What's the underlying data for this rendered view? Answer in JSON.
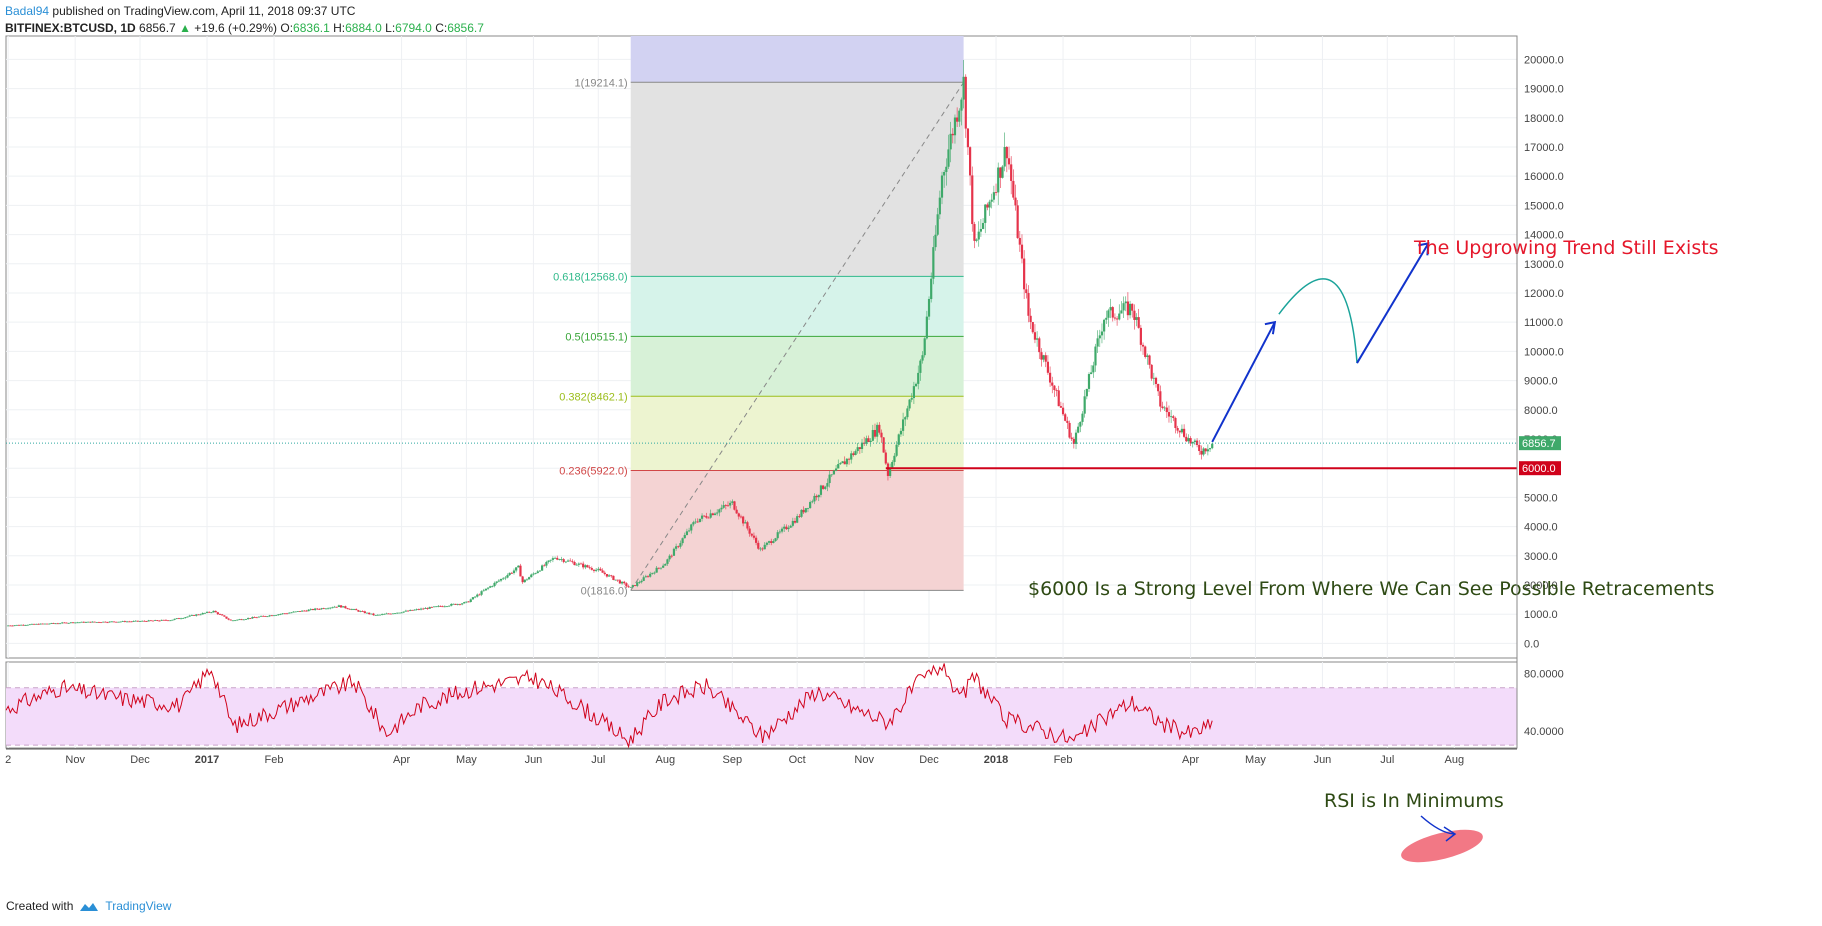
{
  "header": {
    "author": "Badal94",
    "published": "published on TradingView.com, April 11, 2018 09:37 UTC",
    "symbol": "BITFINEX:BTCUSD, 1D",
    "last": "6856.7",
    "change": "+19.6 (+0.29%)",
    "open_label": "O:",
    "open": "6836.1",
    "high_label": "H:",
    "high": "6884.0",
    "low_label": "L:",
    "low": "6794.0",
    "close_label": "C:",
    "close": "6856.7"
  },
  "footer": {
    "created_with": "Created with",
    "brand": "TradingView"
  },
  "annotations": {
    "trend": "The Upgrowing Trend Still Exists",
    "level": "$6000 Is a Strong Level From Where We Can See Possible Retracements",
    "rsi": "RSI is In Minimums"
  },
  "colors": {
    "bull": "#3fa96a",
    "bear": "#e5334a",
    "fib_top": "#d2d2f2",
    "fib_upper": "#e2e2e2",
    "fib_618": "#d6f3ea",
    "fib_5": "#d7f1d7",
    "fib_382": "#edf4d0",
    "fib_236": "#f4d3d3",
    "level_line": "#d0021b",
    "rsi_line": "#d0021b",
    "rsi_band": "#f3dcfa",
    "arrow": "#1133cc",
    "arc": "#1aa39a"
  },
  "chart_data": [
    {
      "type": "candlestick",
      "title": "BITFINEX:BTCUSD, 1D",
      "y_axis_labels": [
        "20000.0",
        "19000.0",
        "18000.0",
        "17000.0",
        "16000.0",
        "15000.0",
        "14000.0",
        "13000.0",
        "12000.0",
        "11000.0",
        "10000.0",
        "9000.0",
        "8000.0",
        "7000.0",
        "6000.0",
        "5000.0",
        "4000.0",
        "3000.0",
        "2000.0",
        "1000.0",
        "0.0"
      ],
      "ylim": [
        -500,
        20800
      ],
      "x_axis_labels": [
        "2",
        "Nov",
        "Dec",
        "2017",
        "Feb",
        "Apr",
        "May",
        "Jun",
        "Jul",
        "Aug",
        "Sep",
        "Oct",
        "Nov",
        "Dec",
        "2018",
        "Feb",
        "Apr",
        "May",
        "Jun",
        "Jul",
        "Aug"
      ],
      "x_axis_dates": [
        "2016-10-01",
        "2016-11-01",
        "2016-12-01",
        "2017-01-01",
        "2017-02-01",
        "2017-04-01",
        "2017-05-01",
        "2017-06-01",
        "2017-07-01",
        "2017-08-01",
        "2017-09-01",
        "2017-10-01",
        "2017-11-01",
        "2017-12-01",
        "2018-01-01",
        "2018-02-01",
        "2018-04-01",
        "2018-05-01",
        "2018-06-01",
        "2018-07-01",
        "2018-08-01"
      ],
      "xlim": [
        "2016-09-30",
        "2018-08-30"
      ],
      "price_path": [
        {
          "date": "2016-09-30",
          "close": 610
        },
        {
          "date": "2016-11-01",
          "close": 720
        },
        {
          "date": "2016-12-01",
          "close": 760
        },
        {
          "date": "2016-12-15",
          "close": 800
        },
        {
          "date": "2017-01-04",
          "close": 1100
        },
        {
          "date": "2017-01-12",
          "close": 780
        },
        {
          "date": "2017-02-01",
          "close": 980
        },
        {
          "date": "2017-03-03",
          "close": 1280
        },
        {
          "date": "2017-03-20",
          "close": 960
        },
        {
          "date": "2017-04-01",
          "close": 1080
        },
        {
          "date": "2017-05-01",
          "close": 1400
        },
        {
          "date": "2017-05-25",
          "close": 2600
        },
        {
          "date": "2017-05-27",
          "close": 2100
        },
        {
          "date": "2017-06-11",
          "close": 2950
        },
        {
          "date": "2017-07-01",
          "close": 2500
        },
        {
          "date": "2017-07-16",
          "close": 1900
        },
        {
          "date": "2017-08-01",
          "close": 2750
        },
        {
          "date": "2017-08-15",
          "close": 4200
        },
        {
          "date": "2017-09-01",
          "close": 4800
        },
        {
          "date": "2017-09-14",
          "close": 3200
        },
        {
          "date": "2017-10-01",
          "close": 4300
        },
        {
          "date": "2017-10-20",
          "close": 6000
        },
        {
          "date": "2017-11-08",
          "close": 7400
        },
        {
          "date": "2017-11-12",
          "close": 5800
        },
        {
          "date": "2017-11-28",
          "close": 9800
        },
        {
          "date": "2017-12-07",
          "close": 16000
        },
        {
          "date": "2017-12-17",
          "close": 19200
        },
        {
          "date": "2017-12-22",
          "close": 13500
        },
        {
          "date": "2018-01-06",
          "close": 17000
        },
        {
          "date": "2018-01-16",
          "close": 11200
        },
        {
          "date": "2018-02-06",
          "close": 6800
        },
        {
          "date": "2018-02-20",
          "close": 11200
        },
        {
          "date": "2018-03-05",
          "close": 11500
        },
        {
          "date": "2018-03-18",
          "close": 8200
        },
        {
          "date": "2018-04-01",
          "close": 6900
        },
        {
          "date": "2018-04-06",
          "close": 6600
        },
        {
          "date": "2018-04-11",
          "close": 6856.7
        }
      ],
      "last_price": 6856.7,
      "horizontal_level": 6000,
      "fibonacci": {
        "start_date": "2017-07-16",
        "end_date": "2017-12-17",
        "levels": [
          {
            "label": "1(19214.1)",
            "ratio": 1,
            "value": 19214.1
          },
          {
            "label": "0.618(12568.0)",
            "ratio": 0.618,
            "value": 12568.0
          },
          {
            "label": "0.5(10515.1)",
            "ratio": 0.5,
            "value": 10515.1
          },
          {
            "label": "0.382(8462.1)",
            "ratio": 0.382,
            "value": 8462.1
          },
          {
            "label": "0.236(5922.0)",
            "ratio": 0.236,
            "value": 5922.0
          },
          {
            "label": "0(1816.0)",
            "ratio": 0,
            "value": 1816.0
          }
        ]
      },
      "price_labels": {
        "last": "6856.7",
        "level": "6000.0"
      },
      "projection_path": [
        {
          "date": "2018-04-11",
          "value": 6900
        },
        {
          "date": "2018-05-10",
          "value": 11000
        },
        {
          "date": "2018-06-12",
          "value": 11950
        },
        {
          "date": "2018-06-17",
          "value": 9600
        },
        {
          "date": "2018-07-20",
          "value": 13700
        }
      ]
    },
    {
      "type": "line",
      "title": "RSI",
      "y_axis_labels": [
        "80.0000",
        "40.0000"
      ],
      "ylim": [
        28,
        88
      ],
      "bands": [
        70,
        30
      ],
      "path": [
        {
          "date": "2016-09-30",
          "value": 55
        },
        {
          "date": "2016-10-25",
          "value": 70
        },
        {
          "date": "2016-11-25",
          "value": 62
        },
        {
          "date": "2016-12-20",
          "value": 58
        },
        {
          "date": "2017-01-03",
          "value": 84
        },
        {
          "date": "2017-01-13",
          "value": 43
        },
        {
          "date": "2017-02-15",
          "value": 62
        },
        {
          "date": "2017-03-10",
          "value": 74
        },
        {
          "date": "2017-03-25",
          "value": 38
        },
        {
          "date": "2017-04-10",
          "value": 58
        },
        {
          "date": "2017-05-05",
          "value": 70
        },
        {
          "date": "2017-06-01",
          "value": 77
        },
        {
          "date": "2017-06-20",
          "value": 60
        },
        {
          "date": "2017-07-15",
          "value": 33
        },
        {
          "date": "2017-08-01",
          "value": 62
        },
        {
          "date": "2017-08-20",
          "value": 71
        },
        {
          "date": "2017-09-15",
          "value": 36
        },
        {
          "date": "2017-10-10",
          "value": 68
        },
        {
          "date": "2017-10-28",
          "value": 55
        },
        {
          "date": "2017-11-12",
          "value": 46
        },
        {
          "date": "2017-11-25",
          "value": 72
        },
        {
          "date": "2017-12-08",
          "value": 87
        },
        {
          "date": "2017-12-15",
          "value": 60
        },
        {
          "date": "2017-12-22",
          "value": 78
        },
        {
          "date": "2018-01-05",
          "value": 48
        },
        {
          "date": "2018-01-20",
          "value": 42
        },
        {
          "date": "2018-02-06",
          "value": 33
        },
        {
          "date": "2018-02-25",
          "value": 54
        },
        {
          "date": "2018-03-05",
          "value": 60
        },
        {
          "date": "2018-03-20",
          "value": 44
        },
        {
          "date": "2018-04-01",
          "value": 38
        },
        {
          "date": "2018-04-11",
          "value": 44
        }
      ]
    }
  ]
}
